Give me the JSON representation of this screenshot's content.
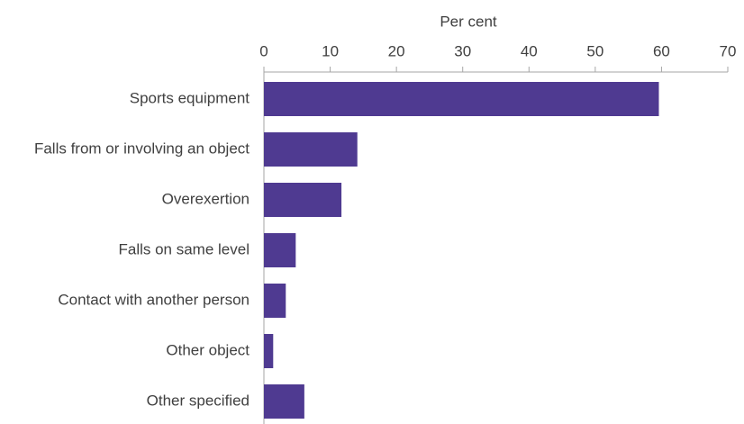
{
  "chart_data": {
    "type": "bar",
    "orientation": "horizontal",
    "x_label": "Per cent",
    "categories": [
      "Sports equipment",
      "Falls from or involving an object",
      "Overexertion",
      "Falls on same level",
      "Contact with another person",
      "Other object",
      "Other specified"
    ],
    "values": [
      59.6,
      14.1,
      11.7,
      4.8,
      3.3,
      1.4,
      6.1
    ],
    "color": "#4f3a91",
    "xlim": [
      0,
      70
    ],
    "xticks": [
      0,
      10,
      20,
      30,
      40,
      50,
      60,
      70
    ],
    "grid": false
  }
}
